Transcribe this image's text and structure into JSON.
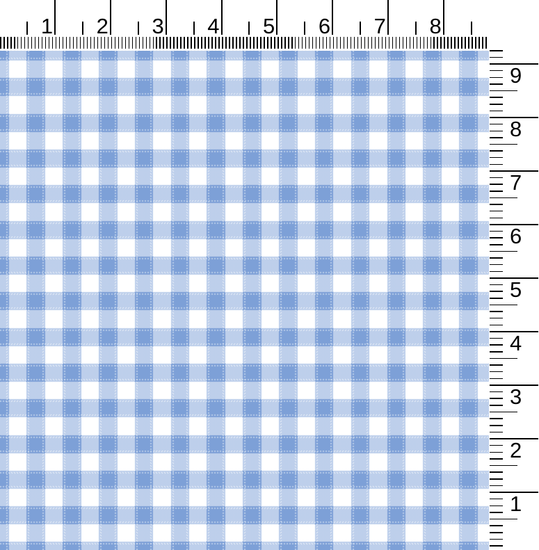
{
  "top_ruler": {
    "orientation": "horizontal",
    "unit": "inches",
    "unit_labels": [
      "1",
      "2",
      "3",
      "4",
      "5",
      "6",
      "7",
      "8"
    ],
    "tick_color": "#000000"
  },
  "right_ruler": {
    "orientation": "vertical",
    "unit": "inches",
    "unit_labels": [
      "9",
      "8",
      "7",
      "6",
      "5",
      "4",
      "3",
      "2",
      "1"
    ],
    "tick_color": "#000000"
  },
  "fabric": {
    "pattern": "blue-and-white gingham check",
    "colors": {
      "check_blue": "#7da0d7",
      "ground_white": "#ffffff",
      "pin_stitch_light": "#b8cbe9"
    }
  }
}
